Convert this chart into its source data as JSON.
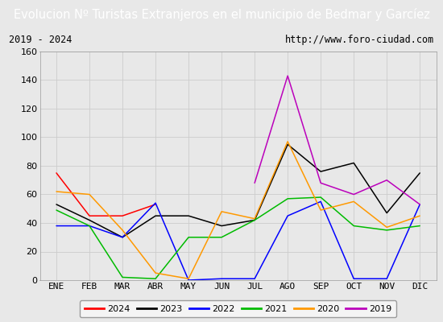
{
  "title": "Evolucion Nº Turistas Extranjeros en el municipio de Bedmar y Garcíez",
  "subtitle_left": "2019 - 2024",
  "subtitle_right": "http://www.foro-ciudad.com",
  "months": [
    "ENE",
    "FEB",
    "MAR",
    "ABR",
    "MAY",
    "JUN",
    "JUL",
    "AGO",
    "SEP",
    "OCT",
    "NOV",
    "DIC"
  ],
  "ylim": [
    0,
    160
  ],
  "yticks": [
    0,
    20,
    40,
    60,
    80,
    100,
    120,
    140,
    160
  ],
  "series": {
    "2024": {
      "color": "#ff0000",
      "values": [
        75,
        45,
        45,
        53,
        null,
        null,
        null,
        null,
        null,
        null,
        null,
        null
      ]
    },
    "2023": {
      "color": "#000000",
      "values": [
        53,
        42,
        30,
        45,
        45,
        38,
        42,
        95,
        76,
        82,
        47,
        75
      ]
    },
    "2022": {
      "color": "#0000ff",
      "values": [
        38,
        38,
        30,
        54,
        0,
        1,
        1,
        45,
        55,
        1,
        1,
        53
      ]
    },
    "2021": {
      "color": "#00bb00",
      "values": [
        49,
        38,
        2,
        1,
        30,
        30,
        42,
        57,
        58,
        38,
        35,
        38
      ]
    },
    "2020": {
      "color": "#ff9900",
      "values": [
        62,
        60,
        35,
        5,
        1,
        48,
        43,
        97,
        49,
        55,
        37,
        45
      ]
    },
    "2019": {
      "color": "#bb00bb",
      "values": [
        null,
        null,
        null,
        null,
        null,
        null,
        68,
        143,
        68,
        60,
        70,
        53
      ]
    }
  },
  "legend_order": [
    "2024",
    "2023",
    "2022",
    "2021",
    "2020",
    "2019"
  ],
  "title_bg_color": "#4472c4",
  "title_color": "#ffffff",
  "plot_bg_color": "#e8e8e8",
  "chart_bg_color": "#e8e8e8",
  "grid_color": "#cccccc",
  "subtitle_box_bg": "#f0f0f0",
  "title_font_size": 10.5,
  "subtitle_font_size": 8.5,
  "tick_font_size": 8,
  "legend_font_size": 8
}
